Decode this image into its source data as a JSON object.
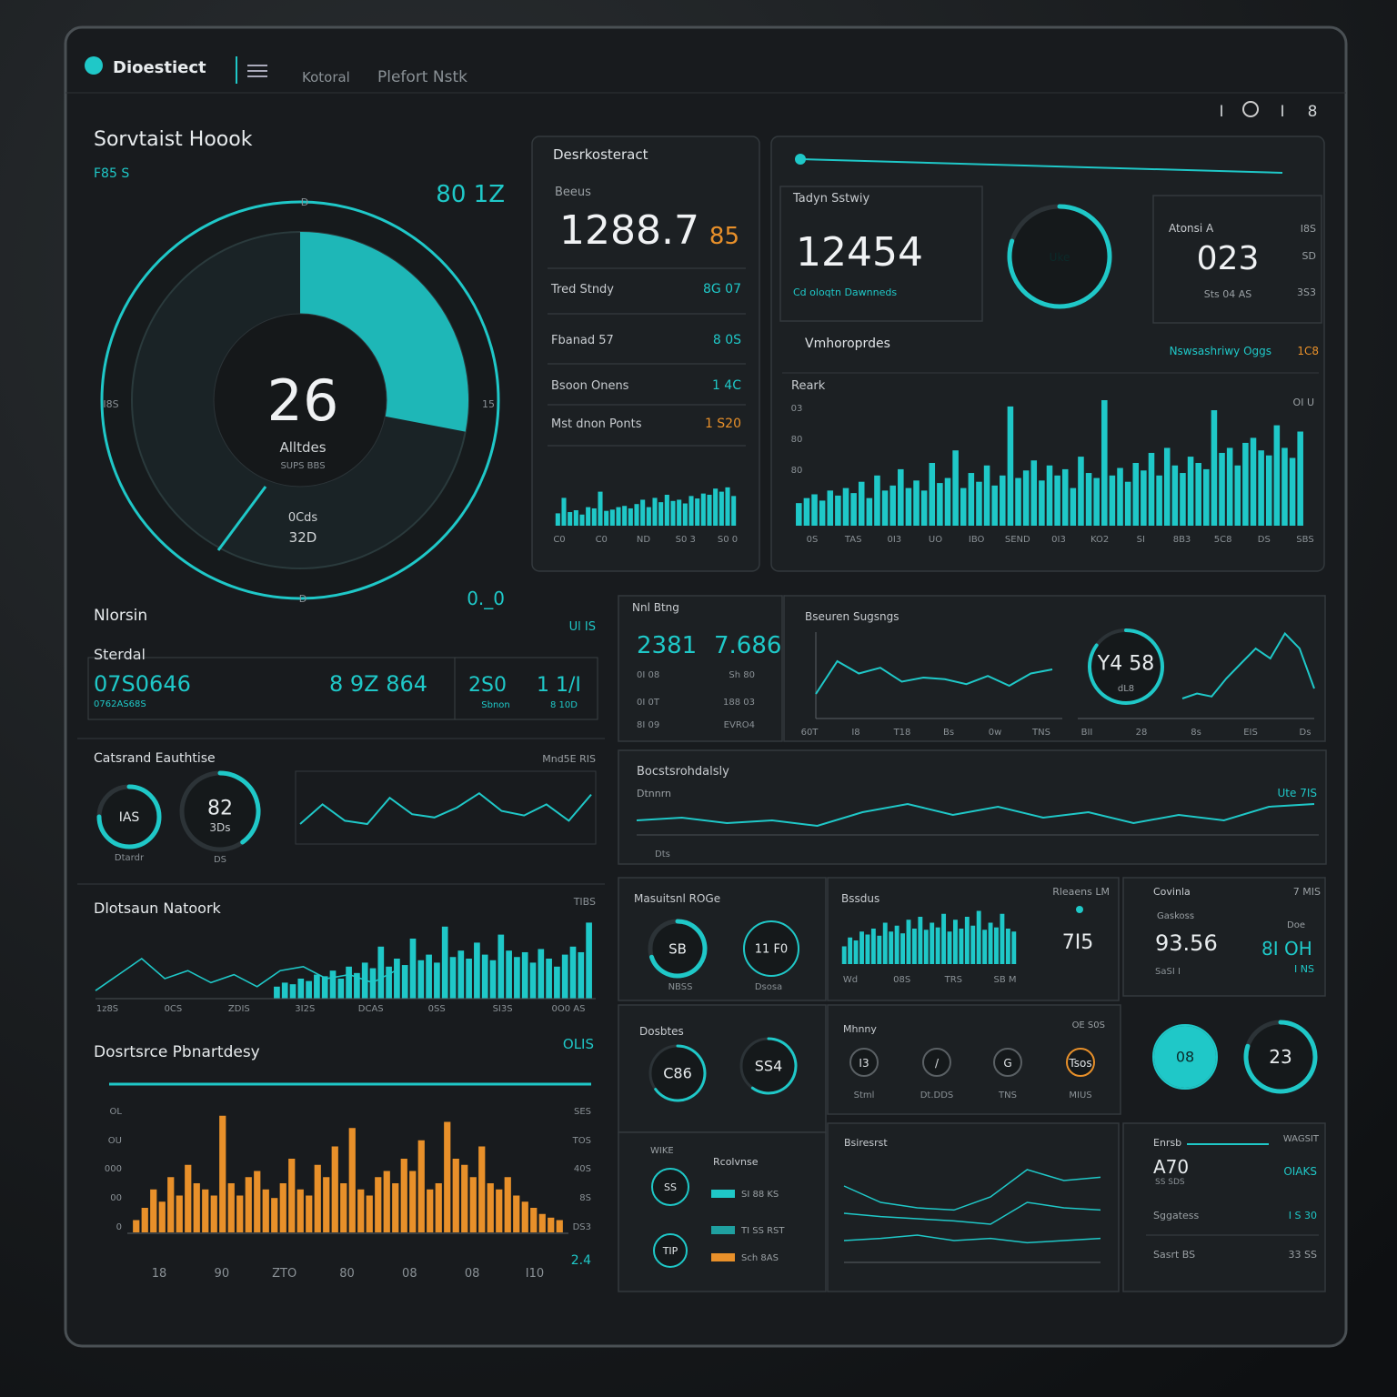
{
  "theme": {
    "accent": "#1fc8c8",
    "warm": "#e8902a"
  },
  "header": {
    "logo": "Dioestiect",
    "nav": [
      "Kotoral",
      "Plefort Nstk"
    ],
    "icons": [
      "I",
      "I",
      "8"
    ]
  },
  "gauge": {
    "title": "Sorvtaist Hoook",
    "tag": "F85 S",
    "stat": "80 1Z",
    "value": "26",
    "label": "Alltdes",
    "sub": "SUPS BBS",
    "foot_label": "0Cds",
    "foot_value": "32D",
    "fill": 28,
    "ticks": [
      "D",
      "I8S",
      "15",
      "D"
    ]
  },
  "summary": {
    "title": "Desrkosteract",
    "label": "Beeus",
    "value": "1288.7",
    "badge": "85",
    "rows": [
      [
        "Tred Stndy",
        "8G 07"
      ],
      [
        "Fbanad 57",
        "8 0S"
      ],
      [
        "Bsoon Onens",
        "1 4C"
      ],
      [
        "Mst dnon Ponts",
        "1 S20"
      ]
    ],
    "chart": {
      "values": [
        20,
        45,
        22,
        25,
        18,
        30,
        28,
        55,
        24,
        26,
        30,
        32,
        28,
        35,
        42,
        30,
        45,
        38,
        50,
        40,
        42,
        36,
        48,
        44,
        52,
        50,
        60,
        55,
        62,
        48
      ],
      "ylim": [
        0,
        100
      ],
      "labels": [
        "C0",
        "C0",
        "ND",
        "S0 3",
        "S0 0"
      ]
    }
  },
  "traffic": {
    "card1": {
      "title": "Tadyn Sstwiy",
      "value": "12454",
      "note": "Cd oloqtn Dawnneds"
    },
    "ring": {
      "label": "Uke",
      "fill": 80
    },
    "card2": {
      "title": "Atonsi A",
      "value": "023",
      "note": "Sts 04 AS",
      "side": [
        "I8S",
        "SD",
        "3S3"
      ]
    },
    "section": "Vmhoroprdes",
    "section_note": "Nswsashriwy Oggs",
    "section_badge": "1C8",
    "chart": {
      "title": "Reark",
      "corner": "OI U",
      "ylabels": [
        "03",
        "80",
        "80"
      ],
      "ylim": [
        0,
        100
      ],
      "values": [
        18,
        22,
        25,
        20,
        28,
        24,
        30,
        26,
        35,
        22,
        40,
        28,
        32,
        45,
        30,
        36,
        28,
        50,
        34,
        38,
        60,
        30,
        42,
        35,
        48,
        32,
        40,
        95,
        38,
        44,
        52,
        36,
        48,
        40,
        45,
        30,
        55,
        42,
        38,
        100,
        40,
        46,
        35,
        50,
        44,
        58,
        40,
        62,
        48,
        42,
        55,
        50,
        45,
        92,
        58,
        62,
        48,
        66,
        70,
        60,
        56,
        80,
        62,
        54,
        75
      ],
      "xlabels": [
        "0S",
        "TAS",
        "0I3",
        "UO",
        "IBO",
        "SEND",
        "0I3",
        "KO2",
        "SI",
        "8B3",
        "5C8",
        "DS",
        "SBS"
      ]
    }
  },
  "nodes": {
    "title": "Nlorsin",
    "stat": "0._0",
    "tag": "Ul IS",
    "label": "Sterdal",
    "values": [
      "07S0646",
      "8 9Z 864",
      "2S0",
      "1 1/I"
    ],
    "subs": [
      "0762AS68S",
      "Sbnon",
      "8 10D"
    ]
  },
  "bidding": {
    "title": "Nnl Btng",
    "values": [
      "2381",
      "7.686"
    ],
    "rows": [
      [
        "0I 08",
        "Sh 80"
      ],
      [
        "0I 0T",
        "188 03"
      ],
      [
        "8I 09",
        "EVRO4"
      ]
    ],
    "chart": {
      "title": "Bseuren Sugsngs",
      "ylim": [
        0,
        100
      ],
      "values": [
        30,
        70,
        55,
        62,
        45,
        50,
        48,
        42,
        52,
        40,
        55,
        60
      ],
      "xlabels": [
        "60T",
        "I8",
        "T18",
        "Bs",
        "0w",
        "TNS"
      ],
      "ring": {
        "value": "Y4 58",
        "sub": "dL8",
        "fill": 85
      },
      "values2": [
        20,
        25,
        22,
        40,
        55,
        70,
        60,
        85,
        70,
        30
      ],
      "xlabels2": [
        "BII",
        "28",
        "8s",
        "EIS",
        "Ds"
      ]
    }
  },
  "capacity": {
    "title": "Catsrand Eauthtise",
    "corner": "Mnd5E RIS",
    "rings": [
      {
        "value": "IAS",
        "label": "Dtardr",
        "fill": 75
      },
      {
        "value": "82",
        "sub": "3Ds",
        "label": "DS",
        "fill": 40
      }
    ],
    "chart": {
      "ylim": [
        0,
        100
      ],
      "values": [
        25,
        55,
        30,
        25,
        65,
        40,
        35,
        50,
        72,
        45,
        38,
        55,
        30,
        70
      ]
    }
  },
  "distribution": {
    "title": "Bocstsrohdalsly",
    "label": "Dtnnrn",
    "corner": "Ute 7IS",
    "foot": "Dts",
    "ylim": [
      0,
      100
    ],
    "values": [
      30,
      35,
      25,
      30,
      20,
      45,
      60,
      40,
      55,
      35,
      45,
      25,
      40,
      30,
      55,
      60
    ]
  },
  "network": {
    "title": "Dlotsaun Natoork",
    "corner": "TIBS",
    "ylim": [
      0,
      100
    ],
    "line": [
      10,
      30,
      50,
      25,
      35,
      20,
      30,
      15,
      35,
      40,
      25,
      30,
      20,
      35
    ],
    "bars": [
      15,
      20,
      18,
      25,
      22,
      30,
      28,
      35,
      25,
      40,
      32,
      45,
      38,
      65,
      40,
      50,
      42,
      75,
      48,
      55,
      45,
      90,
      52,
      60,
      50,
      70,
      55,
      48,
      80,
      60,
      52,
      58,
      45,
      62,
      50,
      40,
      55,
      65,
      58,
      95
    ],
    "xlabels": [
      "1z8S",
      "0CS",
      "ZDIS",
      "3I2S",
      "DCAS",
      "0SS",
      "SI3S",
      "0O0 AS"
    ]
  },
  "density": {
    "title": "Dosrtsrce Pbnartdesy",
    "corner": "OLIS",
    "ylim": [
      0,
      100
    ],
    "values": [
      10,
      20,
      35,
      25,
      45,
      30,
      55,
      40,
      35,
      30,
      95,
      40,
      30,
      45,
      50,
      35,
      28,
      40,
      60,
      35,
      30,
      55,
      45,
      70,
      40,
      85,
      35,
      30,
      45,
      50,
      40,
      60,
      50,
      75,
      35,
      40,
      90,
      60,
      55,
      45,
      70,
      40,
      35,
      45,
      30,
      25,
      20,
      15,
      12,
      10
    ],
    "ylabels": [
      "OL",
      "OU",
      "000",
      "00",
      "0"
    ],
    "ylabels2": [
      "SES",
      "TOS",
      "40S",
      "8S",
      "DS3"
    ],
    "xlabels": [
      "18",
      "90",
      "ZTO",
      "80",
      "08",
      "08",
      "I10"
    ],
    "foot": "2.4"
  },
  "monitor": {
    "title": "Masuitsnl ROGe",
    "rings": [
      {
        "value": "SB",
        "label": "NBSS",
        "fill": 70
      },
      {
        "value": "11 F0",
        "label": "Dsosa",
        "fill": 100
      }
    ]
  },
  "buckets": {
    "title": "Bssdus",
    "corner": "Rleaens LM",
    "stat": "7I5",
    "ylim": [
      0,
      100
    ],
    "values": [
      30,
      45,
      40,
      55,
      50,
      60,
      48,
      70,
      55,
      65,
      52,
      75,
      60,
      80,
      58,
      70,
      62,
      85,
      55,
      75,
      60,
      80,
      65,
      90,
      58,
      70,
      62,
      85,
      60,
      55
    ],
    "xlabels": [
      "Wd",
      "08S",
      "TRS",
      "SB M"
    ]
  },
  "coverage": {
    "title": "Covinla",
    "corner": "7 MIS",
    "label": "Gaskoss",
    "tag2": "Doe",
    "value": "93.56",
    "value2": "8I OH",
    "note": "SaSI I",
    "tag": "I NS"
  },
  "doses": {
    "title": "Dosbtes",
    "rings": [
      {
        "value": "C86",
        "fill": 65
      },
      {
        "value": "SS4",
        "fill": 60
      }
    ]
  },
  "memory": {
    "title": "Mhnny",
    "corner": "OE S0S",
    "items": [
      {
        "top": "I3",
        "label": "Stml"
      },
      {
        "top": "/",
        "label": "Dt.DDS"
      },
      {
        "top": "G",
        "label": "TNS"
      },
      {
        "top": "Tsos",
        "label": "MIUS"
      }
    ]
  },
  "status": {
    "rings": [
      {
        "value": "08",
        "fill": 100
      },
      {
        "value": "23",
        "fill": 80
      }
    ]
  },
  "response": {
    "label": "WIKE",
    "title": "Rcolvnse",
    "icons": [
      "SS",
      "TIP"
    ],
    "items": [
      {
        "label": "SI 88 KS",
        "color": "#1fc8c8"
      },
      {
        "label": "TI SS RST",
        "color": "#1fa0a0"
      },
      {
        "label": "Sch 8AS",
        "color": "#e8902a"
      }
    ]
  },
  "lines": {
    "title": "Bsiresrst",
    "ylim": [
      0,
      100
    ],
    "series": [
      [
        70,
        55,
        50,
        48,
        60,
        85,
        75,
        78
      ],
      [
        45,
        42,
        40,
        38,
        35,
        55,
        50,
        48
      ],
      [
        20,
        22,
        25,
        20,
        22,
        18,
        20,
        22
      ]
    ]
  },
  "summary2": {
    "title": "Enrsb",
    "corner": "WAGSIT",
    "value": "A70",
    "sub": "SS SDS",
    "tag": "OIAKS",
    "rows": [
      [
        "Sggatess",
        "I S 30"
      ],
      [
        "Sasrt BS",
        "33 SS"
      ]
    ]
  }
}
